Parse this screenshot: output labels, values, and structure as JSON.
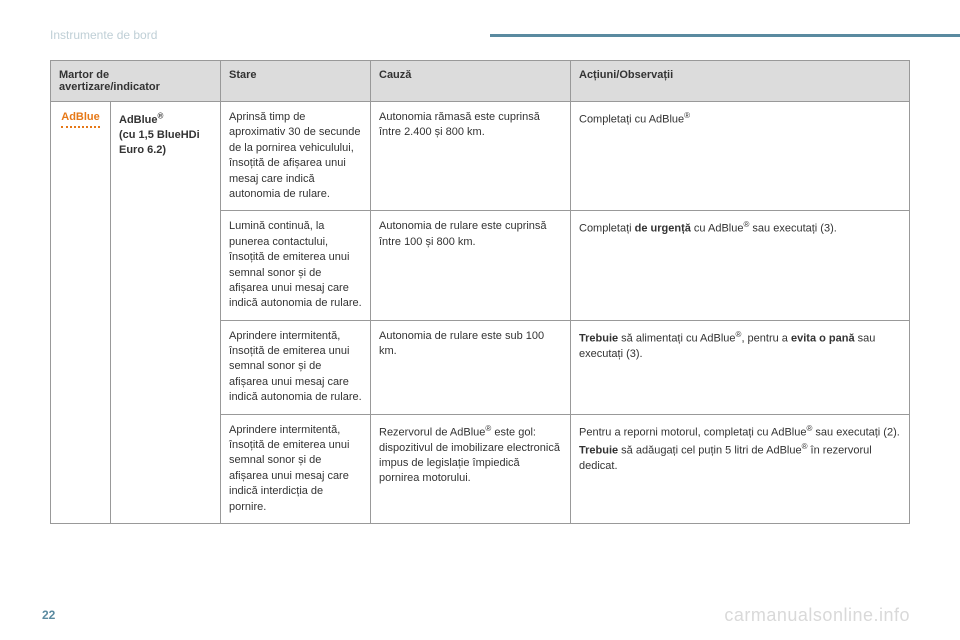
{
  "section_title": "Instrumente de bord",
  "page_number": "22",
  "watermark": "carmanualsonline.info",
  "headers": {
    "indicator": "Martor de avertizare/indicator",
    "state": "Stare",
    "cause": "Cauză",
    "actions": "Acțiuni/Observații"
  },
  "indicator": {
    "icon_text": "AdBlue",
    "name": "AdBlue",
    "subname": "(cu 1,5 BlueHDi Euro 6.2)"
  },
  "rows": [
    {
      "state": "Aprinsă timp de aproximativ 30 de secunde de la pornirea vehiculului, însoțită de afișarea unui mesaj care indică autonomia de rulare.",
      "cause": "Autonomia rămasă este cuprinsă între 2.400 și 800 km.",
      "actions_pre": "Completați cu AdBlue",
      "actions_post": ""
    },
    {
      "state": "Lumină continuă, la punerea contactului, însoțită de emiterea unui semnal sonor și de afișarea unui mesaj care indică autonomia de rulare.",
      "cause": "Autonomia de rulare este cuprinsă între 100 și 800 km.",
      "actions_pre": "Completați ",
      "actions_bold": "de urgență",
      "actions_mid": " cu AdBlue",
      "actions_post": " sau executați (3)."
    },
    {
      "state": "Aprindere intermitentă, însoțită de emiterea unui semnal sonor și de afișarea unui mesaj care indică autonomia de rulare.",
      "cause": "Autonomia de rulare este sub 100 km.",
      "actions_bold1": "Trebuie",
      "actions_mid1": " să alimentați cu AdBlue",
      "actions_mid2": ", pentru a ",
      "actions_bold2": "evita o pană",
      "actions_post": " sau executați (3)."
    },
    {
      "state": "Aprindere intermitentă, însoțită de emiterea unui semnal sonor și de afișarea unui mesaj care indică interdicția de pornire.",
      "cause_pre": "Rezervorul de AdBlue",
      "cause_post": " este gol: dispozitivul de imobilizare electronică impus de legislație împiedică pornirea motorului.",
      "actions_line1_pre": "Pentru a reporni motorul, completați cu AdBlue",
      "actions_line1_post": " sau executați (2).",
      "actions_line2_bold": "Trebuie",
      "actions_line2_mid": " să adăugați cel puțin 5 litri de AdBlue",
      "actions_line2_post": " în rezervorul dedicat."
    }
  ]
}
